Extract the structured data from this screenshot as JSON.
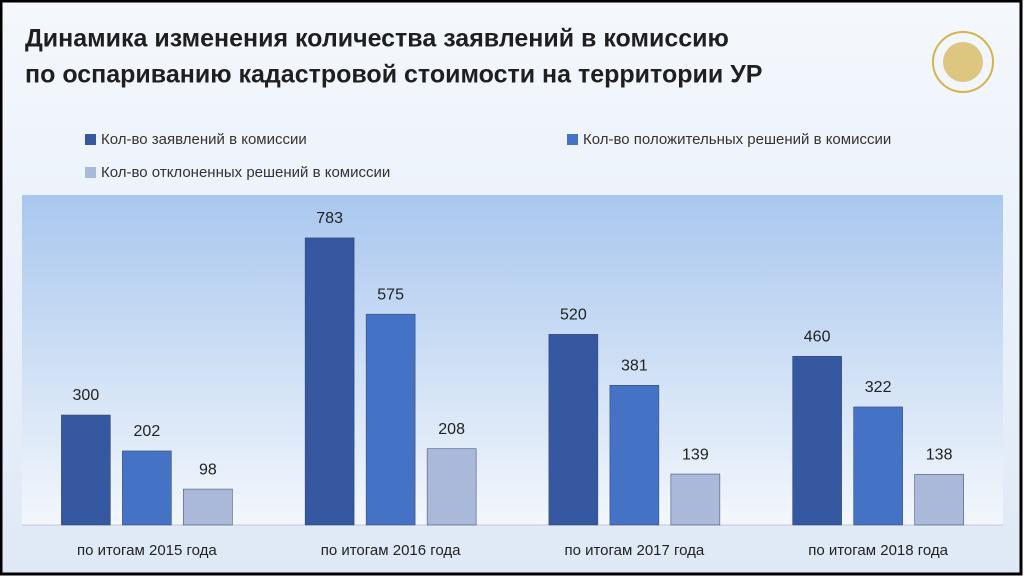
{
  "chart_data": {
    "type": "bar",
    "title": [
      "Динамика изменения количества заявлений в комиссию",
      "по оспариванию кадастровой стоимости на территории УР"
    ],
    "categories": [
      "по итогам 2015 года",
      "по итогам 2016 года",
      "по итогам 2017 года",
      "по итогам 2018 года"
    ],
    "series": [
      {
        "name": "Кол-во заявлений в комиссии",
        "color": "#3558a0",
        "values": [
          300,
          783,
          520,
          460
        ]
      },
      {
        "name": "Кол-во положительных решений в комиссии",
        "color": "#4472c4",
        "values": [
          202,
          575,
          381,
          322
        ]
      },
      {
        "name": "Кол-во отклоненных решений в комиссии",
        "color": "#aab9d9",
        "values": [
          98,
          208,
          139,
          138
        ]
      }
    ],
    "ylim": [
      0,
      900
    ]
  }
}
